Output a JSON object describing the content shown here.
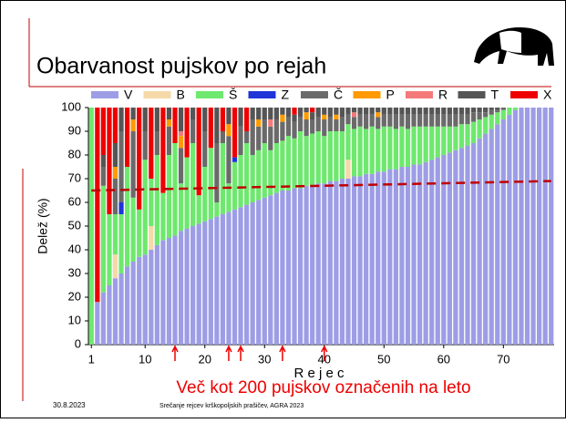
{
  "slide_title": "Obarvanost pujskov po rejah",
  "footer": {
    "date": "30.8.2023",
    "event": "Srečanje rejcev krškopoljskih prašičev, AGRA 2023"
  },
  "chart_data": {
    "type": "stacked_bar",
    "x_label": "R e j e c",
    "y_label": "Delež (%)",
    "annotation": "Več kot 200 pujskov označenih na leto",
    "x": [
      1,
      2,
      3,
      4,
      5,
      6,
      7,
      8,
      9,
      10,
      11,
      12,
      13,
      14,
      15,
      16,
      17,
      18,
      19,
      20,
      21,
      22,
      23,
      24,
      25,
      26,
      27,
      28,
      29,
      30,
      31,
      32,
      33,
      34,
      35,
      36,
      37,
      38,
      39,
      40,
      41,
      42,
      43,
      44,
      45,
      46,
      47,
      48,
      49,
      50,
      51,
      52,
      53,
      54,
      55,
      56,
      57,
      58,
      59,
      60,
      61,
      62,
      63,
      64,
      65,
      66,
      67,
      68,
      69,
      70,
      71,
      72,
      73,
      74,
      75,
      76,
      77,
      78
    ],
    "xlim": [
      0.5,
      78.5
    ],
    "xticks": [
      1,
      10,
      20,
      30,
      40,
      50,
      60,
      70
    ],
    "ylim": [
      0,
      100
    ],
    "yticks": [
      0,
      10,
      20,
      30,
      40,
      50,
      60,
      70,
      80,
      90,
      100
    ],
    "grid": false,
    "series": [
      {
        "name": "V",
        "color": "#9d9de6",
        "values": [
          0,
          18,
          22,
          25,
          28,
          30,
          33,
          35,
          37,
          38,
          40,
          42,
          44,
          45,
          46,
          48,
          49,
          50,
          51,
          52,
          53,
          54,
          55,
          56,
          57,
          58,
          59,
          60,
          61,
          62,
          63,
          64,
          65,
          65,
          66,
          66,
          67,
          67,
          68,
          68,
          69,
          69,
          70,
          70,
          71,
          71,
          72,
          72,
          73,
          73,
          74,
          74,
          75,
          75,
          76,
          76,
          77,
          78,
          79,
          80,
          81,
          82,
          83,
          84,
          85,
          87,
          89,
          91,
          93,
          95,
          97,
          99,
          100,
          100,
          100,
          100,
          100,
          100
        ]
      },
      {
        "name": "B",
        "color": "#f6d9a8",
        "values": [
          0,
          0,
          0,
          0,
          10,
          0,
          0,
          0,
          0,
          0,
          10,
          0,
          0,
          0,
          0,
          0,
          0,
          0,
          0,
          0,
          0,
          0,
          0,
          0,
          0,
          0,
          0,
          0,
          0,
          0,
          0,
          0,
          0,
          0,
          0,
          0,
          0,
          0,
          0,
          0,
          0,
          0,
          0,
          8,
          0,
          0,
          0,
          0,
          0,
          0,
          0,
          0,
          0,
          0,
          0,
          0,
          0,
          0,
          0,
          0,
          0,
          0,
          0,
          0,
          0,
          0,
          0,
          0,
          0,
          0,
          0,
          0,
          0,
          0,
          0,
          0,
          0,
          0
        ]
      },
      {
        "name": "Š",
        "color": "#6ee86e",
        "values": [
          100,
          0,
          45,
          30,
          17,
          25,
          42,
          27,
          20,
          40,
          20,
          38,
          20,
          35,
          39,
          20,
          30,
          35,
          12,
          23,
          30,
          6,
          30,
          12,
          20,
          22,
          26,
          20,
          21,
          23,
          19,
          21,
          21,
          23,
          21,
          24,
          21,
          22,
          22,
          20,
          21,
          21,
          20,
          15,
          20,
          21,
          19,
          20,
          18,
          19,
          18,
          17,
          17,
          16,
          16,
          16,
          15,
          14,
          13,
          12,
          11,
          10,
          10,
          9,
          9,
          8,
          7,
          6,
          5,
          4,
          3,
          1,
          0,
          0,
          0,
          0,
          0,
          0
        ]
      },
      {
        "name": "Z",
        "color": "#1f35d8",
        "values": [
          0,
          0,
          0,
          0,
          0,
          5,
          0,
          0,
          0,
          0,
          0,
          0,
          0,
          0,
          0,
          0,
          0,
          0,
          0,
          0,
          0,
          0,
          0,
          0,
          2,
          0,
          0,
          0,
          0,
          0,
          0,
          0,
          0,
          0,
          0,
          0,
          0,
          0,
          0,
          0,
          0,
          0,
          0,
          0,
          0,
          0,
          0,
          0,
          0,
          0,
          0,
          0,
          0,
          0,
          0,
          0,
          0,
          0,
          0,
          0,
          0,
          0,
          0,
          0,
          0,
          0,
          0,
          0,
          0,
          0,
          0,
          0,
          0,
          0,
          0,
          0,
          0,
          0
        ]
      },
      {
        "name": "Č",
        "color": "#6a6a6a",
        "values": [
          0,
          0,
          8,
          0,
          15,
          30,
          0,
          28,
          0,
          12,
          0,
          10,
          0,
          12,
          0,
          15,
          0,
          10,
          0,
          15,
          0,
          25,
          5,
          20,
          0,
          12,
          5,
          15,
          10,
          10,
          10,
          10,
          8,
          8,
          7,
          6,
          7,
          6,
          6,
          7,
          6,
          5,
          6,
          4,
          5,
          5,
          6,
          5,
          5,
          5,
          5,
          6,
          5,
          6,
          5,
          5,
          5,
          5,
          5,
          5,
          5,
          5,
          4,
          4,
          4,
          3,
          2,
          2,
          1,
          1,
          0,
          0,
          0,
          0,
          0,
          0,
          0,
          0
        ]
      },
      {
        "name": "P",
        "color": "#ff9a00",
        "values": [
          0,
          0,
          0,
          0,
          5,
          0,
          0,
          5,
          0,
          0,
          0,
          0,
          0,
          3,
          0,
          5,
          0,
          0,
          0,
          0,
          0,
          0,
          0,
          5,
          0,
          0,
          0,
          0,
          3,
          0,
          0,
          0,
          3,
          0,
          0,
          0,
          3,
          0,
          0,
          2,
          0,
          2,
          0,
          0,
          0,
          0,
          0,
          0,
          2,
          0,
          0,
          0,
          0,
          0,
          0,
          0,
          0,
          0,
          0,
          0,
          0,
          0,
          0,
          0,
          0,
          0,
          0,
          0,
          0,
          0,
          0,
          0,
          0,
          0,
          0,
          0,
          0,
          0
        ]
      },
      {
        "name": "R",
        "color": "#f47a7a",
        "values": [
          0,
          0,
          0,
          0,
          0,
          0,
          0,
          0,
          0,
          0,
          0,
          0,
          0,
          0,
          0,
          2,
          0,
          0,
          0,
          0,
          0,
          0,
          0,
          0,
          0,
          0,
          0,
          0,
          0,
          0,
          3,
          0,
          0,
          0,
          0,
          0,
          0,
          0,
          0,
          0,
          0,
          0,
          0,
          0,
          2,
          0,
          0,
          0,
          0,
          0,
          0,
          0,
          0,
          0,
          0,
          0,
          0,
          0,
          0,
          0,
          0,
          0,
          0,
          0,
          0,
          0,
          0,
          0,
          0,
          0,
          0,
          0,
          0,
          0,
          0,
          0,
          0,
          0
        ]
      },
      {
        "name": "T",
        "color": "#555555",
        "values": [
          0,
          0,
          5,
          0,
          10,
          10,
          0,
          5,
          0,
          10,
          0,
          10,
          0,
          5,
          0,
          10,
          0,
          5,
          0,
          10,
          0,
          15,
          0,
          7,
          0,
          8,
          0,
          5,
          5,
          5,
          5,
          5,
          3,
          4,
          3,
          4,
          2,
          3,
          4,
          3,
          4,
          3,
          4,
          3,
          2,
          3,
          3,
          3,
          2,
          3,
          3,
          3,
          3,
          3,
          3,
          3,
          3,
          3,
          3,
          3,
          3,
          3,
          3,
          3,
          2,
          2,
          2,
          1,
          1,
          0,
          0,
          0,
          0,
          0,
          0,
          0,
          0,
          0
        ]
      },
      {
        "name": "X",
        "color": "#ee0000",
        "values": [
          0,
          82,
          20,
          45,
          15,
          0,
          25,
          0,
          43,
          0,
          30,
          0,
          36,
          0,
          15,
          0,
          21,
          0,
          37,
          0,
          17,
          0,
          10,
          0,
          21,
          0,
          10,
          0,
          0,
          0,
          0,
          0,
          0,
          0,
          3,
          0,
          0,
          2,
          0,
          0,
          0,
          0,
          0,
          0,
          0,
          0,
          0,
          0,
          0,
          0,
          0,
          0,
          0,
          0,
          0,
          0,
          0,
          0,
          0,
          0,
          0,
          0,
          0,
          0,
          0,
          0,
          0,
          0,
          0,
          0,
          0,
          0,
          0,
          0,
          0,
          0,
          0,
          0
        ]
      }
    ],
    "trend_line": {
      "x": [
        1,
        78
      ],
      "y": [
        65,
        69
      ],
      "color": "#c00000"
    },
    "arrows_x": [
      15,
      24,
      26,
      33,
      40
    ],
    "arrow_color": "#ee0000"
  }
}
